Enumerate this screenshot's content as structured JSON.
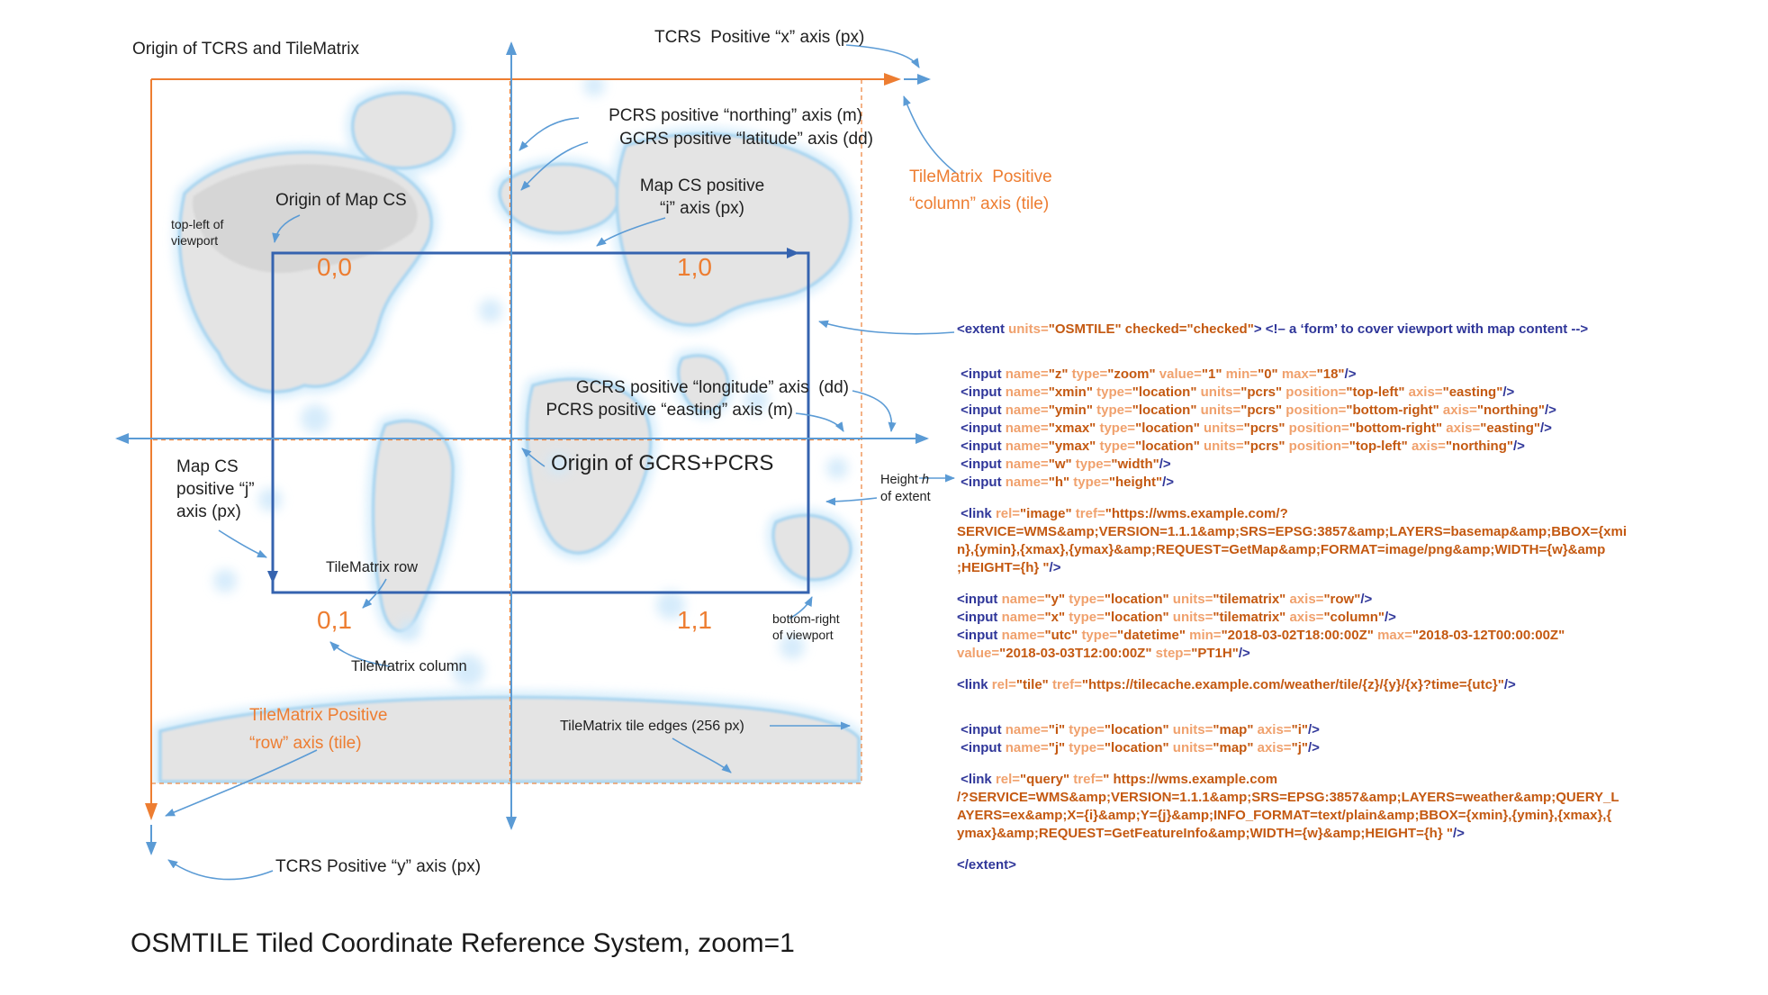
{
  "colors": {
    "orange": "#ED7D31",
    "callout_blue": "#5B9BD5",
    "extent_blue": "#3563AF",
    "text": "#1F1F1F",
    "code_tag": "#2F3699",
    "code_attr": "#F0A16D",
    "code_value": "#C45911"
  },
  "labels": {
    "origin_tcrs": "Origin of TCRS and TileMatrix",
    "tcrs_x": "TCRS  Positive “x” axis (px)",
    "pcrs_northing": "PCRS positive “northing” axis (m)",
    "gcrs_latitude": "GCRS positive “latitude” axis (dd)",
    "mapcs_i": "Map CS positive\n“i” axis (px)",
    "origin_mapcs": "Origin of Map CS",
    "topleft_viewport": "top-left of\nviewport",
    "tm_col_axis": "TileMatrix  Positive\n“column” axis (tile)",
    "gcrs_longitude": "GCRS positive “longitude” axis  (dd)",
    "pcrs_easting": "PCRS positive “easting” axis (m)",
    "origin_gcrs": "Origin of GCRS+PCRS",
    "mapcs_j": "Map CS\npositive “j”\naxis (px)",
    "tm_row": "TileMatrix row",
    "tm_col": "TileMatrix column",
    "tm_row_axis": "TileMatrix Positive\n“row” axis (tile)",
    "tile_edges": "TileMatrix tile edges (256 px)",
    "br_viewport": "bottom-right\nof viewport",
    "height_pre": "Height ",
    "height_h": "h",
    "height_line2": "of extent",
    "tcrs_y": "TCRS Positive “y” axis (px)"
  },
  "tiles": {
    "t00": "0,0",
    "t10": "1,0",
    "t01": "0,1",
    "t11": "1,1"
  },
  "footer": {
    "title": "OSMTILE Tiled Coordinate Reference System, zoom=1"
  },
  "code": {
    "lines": [
      [
        [
          "t",
          "<extent "
        ],
        [
          "a",
          "units="
        ],
        [
          "v",
          "\"OSMTILE\" "
        ],
        [
          "v",
          "checked=\"checked\""
        ],
        [
          "t",
          "> "
        ],
        [
          "c",
          "<!– a ‘form’ to cover viewport with map content -->"
        ]
      ],
      [],
      [],
      [
        [
          "t",
          " <input "
        ],
        [
          "a",
          "name="
        ],
        [
          "v",
          "\"z\" "
        ],
        [
          "a",
          "type="
        ],
        [
          "v",
          "\"zoom\" "
        ],
        [
          "a",
          "value="
        ],
        [
          "v",
          "\"1\" "
        ],
        [
          "a",
          "min="
        ],
        [
          "v",
          "\"0\" "
        ],
        [
          "a",
          "max="
        ],
        [
          "v",
          "\"18\""
        ],
        [
          "t",
          "/>"
        ]
      ],
      [
        [
          "t",
          " <input "
        ],
        [
          "a",
          "name="
        ],
        [
          "v",
          "\"xmin\" "
        ],
        [
          "a",
          "type="
        ],
        [
          "v",
          "\"location\" "
        ],
        [
          "a",
          "units="
        ],
        [
          "v",
          "\"pcrs\" "
        ],
        [
          "a",
          "position="
        ],
        [
          "v",
          "\"top-left\" "
        ],
        [
          "a",
          "axis="
        ],
        [
          "v",
          "\"easting\""
        ],
        [
          "t",
          "/>"
        ]
      ],
      [
        [
          "t",
          " <input "
        ],
        [
          "a",
          "name="
        ],
        [
          "v",
          "\"ymin\" "
        ],
        [
          "a",
          "type="
        ],
        [
          "v",
          "\"location\" "
        ],
        [
          "a",
          "units="
        ],
        [
          "v",
          "\"pcrs\" "
        ],
        [
          "a",
          "position="
        ],
        [
          "v",
          "\"bottom-right\" "
        ],
        [
          "a",
          "axis="
        ],
        [
          "v",
          "\"northing\""
        ],
        [
          "t",
          "/>"
        ]
      ],
      [
        [
          "t",
          " <input "
        ],
        [
          "a",
          "name="
        ],
        [
          "v",
          "\"xmax\" "
        ],
        [
          "a",
          "type="
        ],
        [
          "v",
          "\"location\" "
        ],
        [
          "a",
          "units="
        ],
        [
          "v",
          "\"pcrs\" "
        ],
        [
          "a",
          "position="
        ],
        [
          "v",
          "\"bottom-right\" "
        ],
        [
          "a",
          "axis="
        ],
        [
          "v",
          "\"easting\""
        ],
        [
          "t",
          "/>"
        ]
      ],
      [
        [
          "t",
          " <input "
        ],
        [
          "a",
          "name="
        ],
        [
          "v",
          "\"ymax\" "
        ],
        [
          "a",
          "type="
        ],
        [
          "v",
          "\"location\" "
        ],
        [
          "a",
          "units="
        ],
        [
          "v",
          "\"pcrs\" "
        ],
        [
          "a",
          "position="
        ],
        [
          "v",
          "\"top-left\" "
        ],
        [
          "a",
          "axis="
        ],
        [
          "v",
          "\"northing\""
        ],
        [
          "t",
          "/>"
        ]
      ],
      [
        [
          "t",
          " <input "
        ],
        [
          "a",
          "name="
        ],
        [
          "v",
          "\"w\" "
        ],
        [
          "a",
          "type="
        ],
        [
          "v",
          "\"width\""
        ],
        [
          "t",
          "/>"
        ]
      ],
      [
        [
          "t",
          " <input "
        ],
        [
          "a",
          "name="
        ],
        [
          "v",
          "\"h\" "
        ],
        [
          "a",
          "type="
        ],
        [
          "v",
          "\"height\""
        ],
        [
          "t",
          "/>"
        ]
      ],
      [],
      [
        [
          "t",
          " <link "
        ],
        [
          "a",
          "rel="
        ],
        [
          "v",
          "\"image\" "
        ],
        [
          "a",
          "tref="
        ],
        [
          "v",
          "\"https://wms.example.com/?"
        ]
      ],
      [
        [
          "v",
          "SERVICE=WMS&amp;VERSION=1.1.1&amp;SRS=EPSG:3857&amp;LAYERS=basemap&amp;BBOX={xmi"
        ]
      ],
      [
        [
          "v",
          "n},{ymin},{xmax},{ymax}&amp;REQUEST=GetMap&amp;FORMAT=image/png&amp;WIDTH={w}&amp"
        ]
      ],
      [
        [
          "v",
          ";HEIGHT={h} \""
        ],
        [
          "t",
          "/>"
        ]
      ],
      [],
      [
        [
          "t",
          "<input "
        ],
        [
          "a",
          "name="
        ],
        [
          "v",
          "\"y\" "
        ],
        [
          "a",
          "type="
        ],
        [
          "v",
          "\"location\" "
        ],
        [
          "a",
          "units="
        ],
        [
          "v",
          "\"tilematrix\" "
        ],
        [
          "a",
          "axis="
        ],
        [
          "v",
          "\"row\""
        ],
        [
          "t",
          "/>"
        ]
      ],
      [
        [
          "t",
          "<input "
        ],
        [
          "a",
          "name="
        ],
        [
          "v",
          "\"x\" "
        ],
        [
          "a",
          "type="
        ],
        [
          "v",
          "\"location\" "
        ],
        [
          "a",
          "units="
        ],
        [
          "v",
          "\"tilematrix\" "
        ],
        [
          "a",
          "axis="
        ],
        [
          "v",
          "\"column\""
        ],
        [
          "t",
          "/>"
        ]
      ],
      [
        [
          "t",
          "<input "
        ],
        [
          "a",
          "name="
        ],
        [
          "v",
          "\"utc\" "
        ],
        [
          "a",
          "type="
        ],
        [
          "v",
          "\"datetime\" "
        ],
        [
          "a",
          "min="
        ],
        [
          "v",
          "\"2018-03-02T18:00:00Z\" "
        ],
        [
          "a",
          "max="
        ],
        [
          "v",
          "\"2018-03-12T00:00:00Z\""
        ]
      ],
      [
        [
          "a",
          "value="
        ],
        [
          "v",
          "\"2018-03-03T12:00:00Z\" "
        ],
        [
          "a",
          "step="
        ],
        [
          "v",
          "\"PT1H\""
        ],
        [
          "t",
          "/>"
        ]
      ],
      [],
      [
        [
          "t",
          "<link "
        ],
        [
          "a",
          "rel="
        ],
        [
          "v",
          "\"tile\" "
        ],
        [
          "a",
          "tref="
        ],
        [
          "v",
          "\"https://tilecache.example.com/weather/tile/{z}/{y}/{x}?time={utc}\""
        ],
        [
          "t",
          "/>"
        ]
      ],
      [],
      [],
      [
        [
          "t",
          " <input "
        ],
        [
          "a",
          "name="
        ],
        [
          "v",
          "\"i\" "
        ],
        [
          "a",
          "type="
        ],
        [
          "v",
          "\"location\" "
        ],
        [
          "a",
          "units="
        ],
        [
          "v",
          "\"map\" "
        ],
        [
          "a",
          "axis="
        ],
        [
          "v",
          "\"i\""
        ],
        [
          "t",
          "/>"
        ]
      ],
      [
        [
          "t",
          " <input "
        ],
        [
          "a",
          "name="
        ],
        [
          "v",
          "\"j\" "
        ],
        [
          "a",
          "type="
        ],
        [
          "v",
          "\"location\" "
        ],
        [
          "a",
          "units="
        ],
        [
          "v",
          "\"map\" "
        ],
        [
          "a",
          "axis="
        ],
        [
          "v",
          "\"j\""
        ],
        [
          "t",
          "/>"
        ]
      ],
      [],
      [
        [
          "t",
          " <link "
        ],
        [
          "a",
          "rel="
        ],
        [
          "v",
          "\"query\" "
        ],
        [
          "a",
          "tref="
        ],
        [
          "v",
          "\" https://wms.example.com"
        ]
      ],
      [
        [
          "v",
          "/?SERVICE=WMS&amp;VERSION=1.1.1&amp;SRS=EPSG:3857&amp;LAYERS=weather&amp;QUERY_L"
        ]
      ],
      [
        [
          "v",
          "AYERS=ex&amp;X={i}&amp;Y={j}&amp;INFO_FORMAT=text/plain&amp;BBOX={xmin},{ymin},{xmax},{"
        ]
      ],
      [
        [
          "v",
          "ymax}&amp;REQUEST=GetFeatureInfo&amp;WIDTH={w}&amp;HEIGHT={h} \""
        ],
        [
          "t",
          "/>"
        ]
      ],
      [],
      [
        [
          "t",
          "</extent>"
        ]
      ]
    ]
  }
}
